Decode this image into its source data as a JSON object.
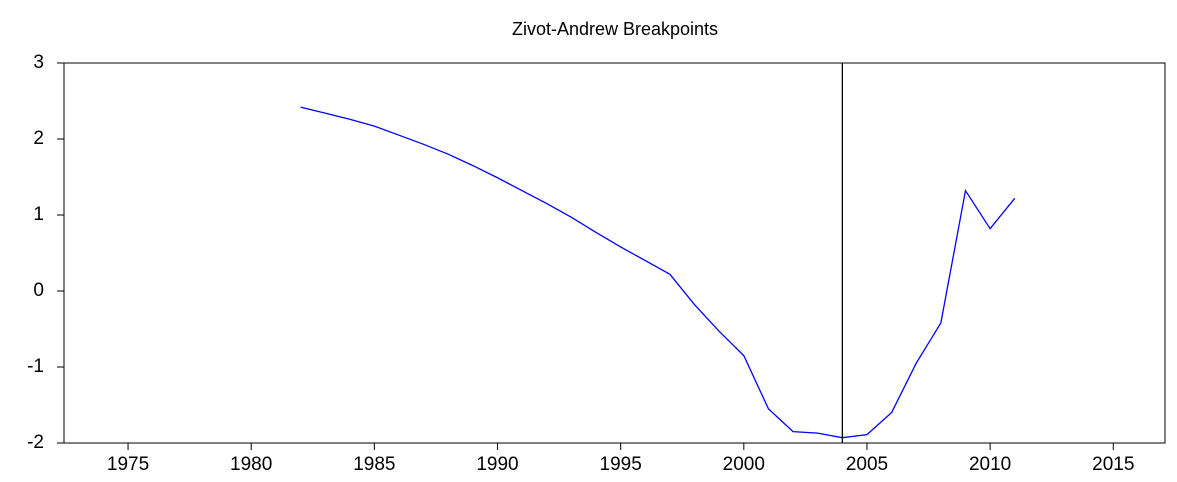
{
  "chart_data": {
    "type": "line",
    "title": "Zivot-Andrew Breakpoints",
    "x": [
      1982,
      1983,
      1984,
      1985,
      1986,
      1987,
      1988,
      1989,
      1990,
      1991,
      1992,
      1993,
      1994,
      1995,
      1996,
      1997,
      1998,
      1999,
      2000,
      2001,
      2002,
      2003,
      2004,
      2005,
      2006,
      2007,
      2008,
      2009,
      2010,
      2011
    ],
    "series": [
      {
        "color": "#0000ff",
        "values": [
          2.42,
          2.34,
          2.26,
          2.17,
          2.05,
          1.93,
          1.8,
          1.65,
          1.49,
          1.32,
          1.15,
          0.97,
          0.77,
          0.58,
          0.4,
          0.22,
          -0.18,
          -0.53,
          -0.85,
          -1.55,
          -1.85,
          -1.87,
          -1.93,
          -1.89,
          -1.6,
          -0.95,
          -0.42,
          1.32,
          0.82,
          1.22
        ]
      }
    ],
    "breakpoint": 2004,
    "breakpoint_color": "#000000",
    "xlim": [
      1972.4,
      2017.1
    ],
    "xticks": [
      1975,
      1980,
      1985,
      1990,
      1995,
      2000,
      2005,
      2010,
      2015
    ],
    "ylim": [
      -2,
      3
    ],
    "yticks": [
      -2,
      -1,
      0,
      1,
      2,
      3
    ],
    "grid": false
  }
}
